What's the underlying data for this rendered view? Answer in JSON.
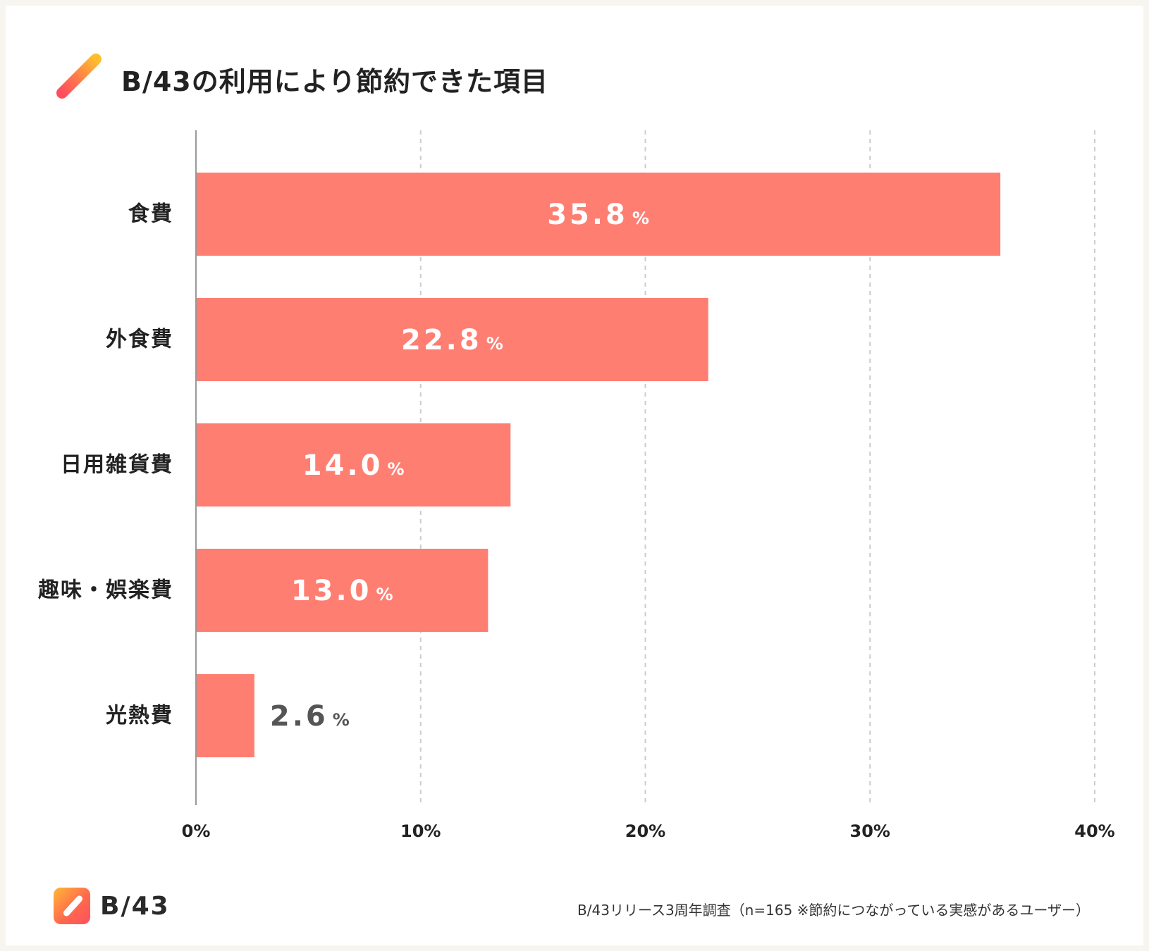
{
  "title": "B/43の利用により節約できた項目",
  "logo": {
    "text": "B/43"
  },
  "source_note": "B/43リリース3周年調査（n=165 ※節約につながっている実感があるユーザー）",
  "colors": {
    "bar": "#ff7e72",
    "bar_label_inside": "#ffffff",
    "bar_label_outside": "#555555",
    "gridline": "#cccccc",
    "axis": "#999999",
    "text": "#222222"
  },
  "chart_data": {
    "type": "bar",
    "orientation": "horizontal",
    "title": "B/43の利用により節約できた項目",
    "categories": [
      "食費",
      "外食費",
      "日用雑貨費",
      "趣味・娯楽費",
      "光熱費"
    ],
    "values": [
      35.8,
      22.8,
      14.0,
      13.0,
      2.6
    ],
    "value_labels": [
      "35.8",
      "22.8",
      "14.0",
      "13.0",
      "2.6"
    ],
    "unit": "%",
    "xlim": [
      0,
      40
    ],
    "xticks": [
      0,
      10,
      20,
      30,
      40
    ],
    "xtick_labels": [
      "0%",
      "10%",
      "20%",
      "30%",
      "40%"
    ],
    "grid": true,
    "legend": "none"
  }
}
